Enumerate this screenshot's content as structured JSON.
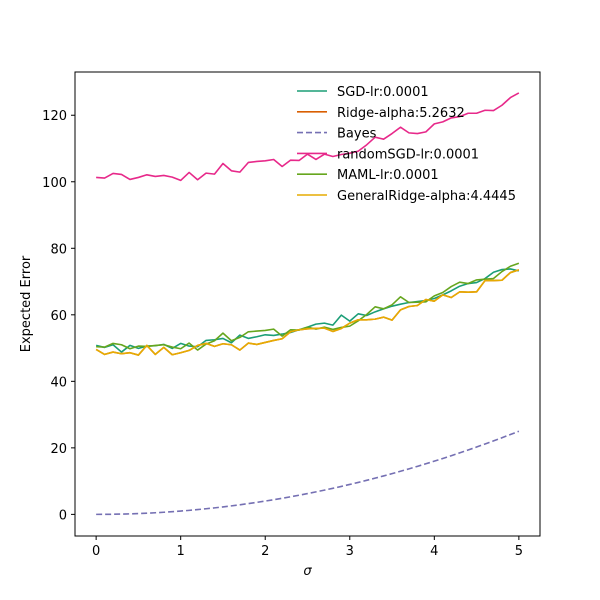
{
  "chart_data": {
    "type": "line",
    "xlabel": "σ",
    "ylabel": "Expected Error",
    "xlim": [
      -0.25,
      5.25
    ],
    "ylim": [
      -6.5,
      133
    ],
    "grid": false,
    "legend_position": "upper-right",
    "x": [
      0,
      0.1,
      0.2,
      0.3,
      0.4,
      0.5,
      0.6,
      0.7,
      0.8,
      0.9,
      1.0,
      1.1,
      1.2,
      1.3,
      1.4,
      1.5,
      1.6,
      1.7,
      1.8,
      1.9,
      2.0,
      2.1,
      2.2,
      2.3,
      2.4,
      2.5,
      2.6,
      2.7,
      2.8,
      2.9,
      3.0,
      3.1,
      3.2,
      3.3,
      3.4,
      3.5,
      3.6,
      3.7,
      3.8,
      3.9,
      4.0,
      4.1,
      4.2,
      4.3,
      4.4,
      4.5,
      4.6,
      4.7,
      4.8,
      4.9,
      5.0
    ],
    "x_ticks": [
      0,
      1,
      2,
      3,
      4,
      5
    ],
    "y_ticks": [
      0,
      20,
      40,
      60,
      80,
      100,
      120
    ],
    "series": [
      {
        "name": "SGD-lr:0.0001",
        "color": "#1b9e77",
        "dash": "solid",
        "values": [
          50.8,
          50.2,
          51.0,
          48.8,
          50.8,
          49.9,
          50.6,
          50.7,
          51.1,
          49.9,
          51.4,
          50.6,
          50.4,
          52.3,
          52.5,
          52.9,
          51.6,
          53.9,
          52.9,
          53.4,
          54.0,
          53.8,
          54.2,
          54.7,
          55.5,
          56.3,
          57.2,
          57.5,
          56.9,
          59.9,
          58.1,
          60.3,
          59.8,
          60.9,
          61.8,
          62.6,
          63.2,
          63.7,
          64.0,
          64.3,
          64.9,
          66.0,
          67.2,
          68.6,
          69.4,
          69.7,
          70.9,
          72.8,
          73.6,
          73.8,
          73.2
        ]
      },
      {
        "name": "Ridge-alpha:5.2632",
        "color": "#d95f02",
        "dash": "solid",
        "values": [
          49.6,
          48.1,
          48.8,
          48.3,
          48.6,
          47.9,
          50.8,
          48.1,
          50.2,
          48.0,
          48.6,
          49.3,
          50.8,
          51.4,
          50.5,
          51.3,
          51.0,
          49.4,
          51.5,
          51.1,
          51.7,
          52.3,
          52.8,
          54.9,
          55.5,
          55.8,
          55.9,
          56.0,
          55.0,
          55.9,
          57.5,
          58.5,
          58.5,
          58.7,
          59.3,
          58.4,
          61.5,
          62.5,
          62.8,
          64.6,
          64.1,
          66.0,
          65.2,
          66.9,
          66.8,
          66.9,
          70.3,
          70.3,
          70.4,
          72.7,
          73.5
        ]
      },
      {
        "name": "Bayes",
        "color": "#7570b3",
        "dash": "dashed",
        "values": [
          0.0,
          0.01,
          0.04,
          0.09,
          0.16,
          0.25,
          0.36,
          0.49,
          0.64,
          0.81,
          1.0,
          1.21,
          1.44,
          1.69,
          1.96,
          2.25,
          2.56,
          2.89,
          3.24,
          3.61,
          4.0,
          4.41,
          4.84,
          5.29,
          5.76,
          6.25,
          6.76,
          7.29,
          7.84,
          8.41,
          9.0,
          9.61,
          10.24,
          10.89,
          11.56,
          12.25,
          12.96,
          13.69,
          14.44,
          15.21,
          16.0,
          16.81,
          17.64,
          18.49,
          19.36,
          20.25,
          21.16,
          22.09,
          23.04,
          24.01,
          25.0
        ]
      },
      {
        "name": "randomSGD-lr:0.0001",
        "color": "#e7298a",
        "dash": "solid",
        "values": [
          101.3,
          101.1,
          102.5,
          102.2,
          100.7,
          101.3,
          102.1,
          101.6,
          101.9,
          101.4,
          100.4,
          102.8,
          100.6,
          102.6,
          102.3,
          105.5,
          103.3,
          102.9,
          105.8,
          106.1,
          106.3,
          106.7,
          104.6,
          106.5,
          106.4,
          108.3,
          106.7,
          108.3,
          107.6,
          108.2,
          108.6,
          109.2,
          111.1,
          113.4,
          112.8,
          114.5,
          116.4,
          114.7,
          114.5,
          115.0,
          117.4,
          118.0,
          119.2,
          119.6,
          120.6,
          120.6,
          121.5,
          121.4,
          123.0,
          125.3,
          126.7
        ]
      },
      {
        "name": "MAML-lr:0.0001",
        "color": "#66a61e",
        "dash": "solid",
        "values": [
          50.4,
          50.3,
          51.4,
          51.0,
          49.8,
          50.6,
          50.5,
          50.8,
          51.0,
          50.3,
          49.8,
          51.5,
          49.4,
          51.2,
          52.2,
          54.5,
          52.2,
          53.2,
          54.9,
          55.1,
          55.3,
          55.7,
          53.6,
          55.5,
          55.4,
          56.3,
          55.7,
          56.3,
          55.6,
          56.2,
          56.6,
          58.2,
          60.1,
          62.4,
          61.8,
          63.0,
          65.4,
          63.7,
          63.8,
          63.9,
          65.7,
          66.7,
          68.5,
          69.8,
          69.4,
          70.5,
          70.7,
          70.9,
          73.0,
          74.6,
          75.5
        ]
      },
      {
        "name": "GeneralRidge-alpha:4.4445",
        "color": "#e6ab02",
        "dash": "solid",
        "values": [
          49.6,
          48.1,
          48.8,
          48.3,
          48.6,
          47.9,
          50.8,
          48.1,
          50.2,
          48.0,
          48.6,
          49.3,
          50.8,
          51.4,
          50.5,
          51.3,
          51.0,
          49.4,
          51.5,
          51.1,
          51.7,
          52.3,
          52.8,
          54.9,
          55.5,
          55.8,
          55.9,
          56.0,
          55.0,
          55.9,
          57.5,
          58.5,
          58.5,
          58.7,
          59.3,
          58.4,
          61.5,
          62.5,
          62.8,
          64.6,
          64.1,
          66.0,
          65.2,
          66.9,
          66.8,
          66.9,
          70.3,
          70.3,
          70.4,
          72.7,
          73.5
        ]
      }
    ]
  }
}
